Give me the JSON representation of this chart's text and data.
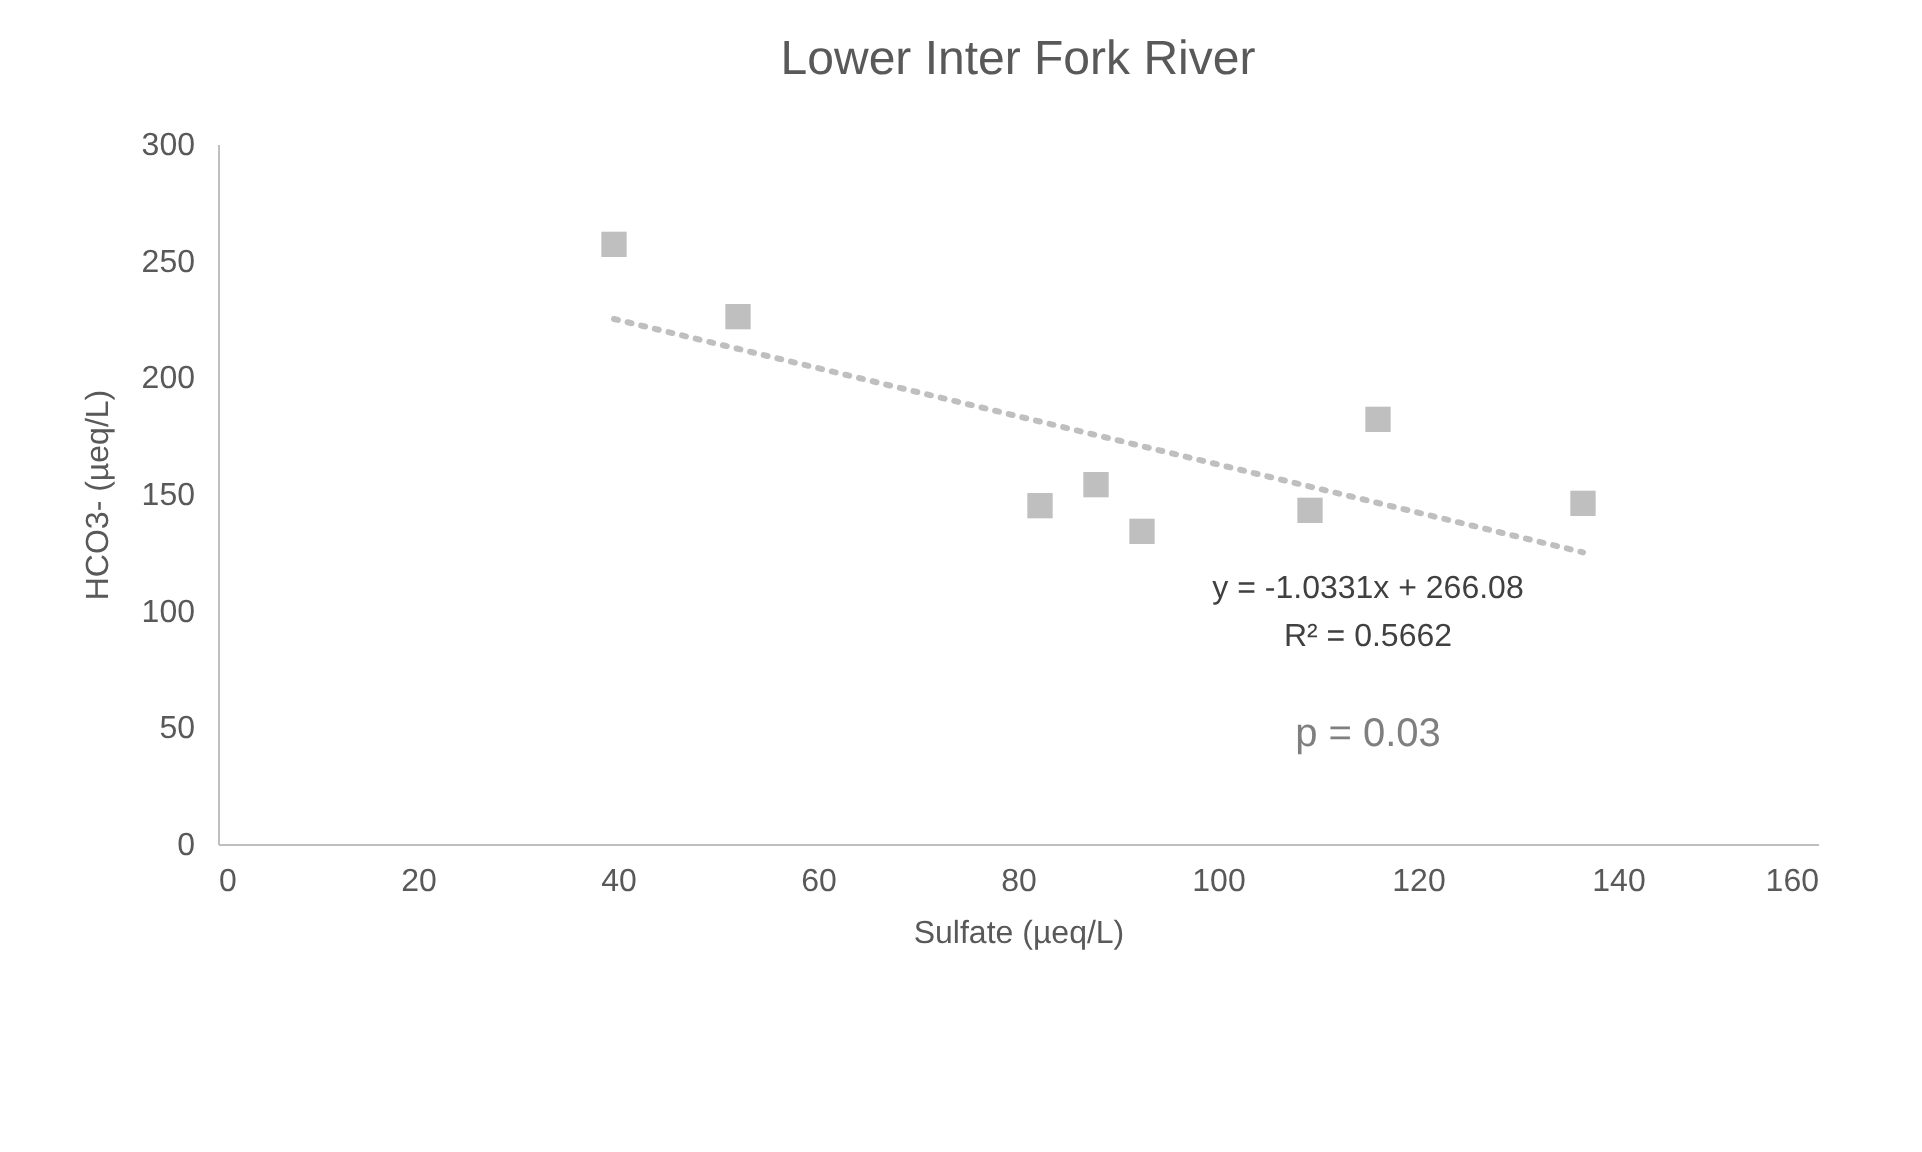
{
  "chart_data": {
    "type": "scatter",
    "title": "Lower Inter Fork River",
    "xlabel": "Sulfate (µeq/L)",
    "ylabel": "HCO3- (µeq/L)",
    "xlim": [
      0,
      160
    ],
    "xticks": [
      0,
      20,
      40,
      60,
      80,
      100,
      120,
      140,
      160
    ],
    "ylim": [
      0,
      300
    ],
    "yticks": [
      0,
      50,
      100,
      150,
      200,
      250,
      300
    ],
    "grid": false,
    "series": [
      {
        "type": "scatter",
        "marker": "square",
        "color": "#bfbfbf",
        "x": [
          39.6,
          52,
          82.2,
          87.8,
          92.4,
          109.2,
          116,
          136.5
        ],
        "values": [
          257,
          226,
          145,
          154,
          134,
          143,
          182,
          146
        ]
      },
      {
        "type": "line",
        "marker": "none",
        "color": "#bfbfbf",
        "line_style": "dotted",
        "x": [
          39.6,
          136.5
        ],
        "values": [
          225,
          125
        ]
      }
    ],
    "annotations": [
      "y = -1.0331x + 266.08",
      "R² = 0.5662",
      "p = 0.03"
    ]
  }
}
